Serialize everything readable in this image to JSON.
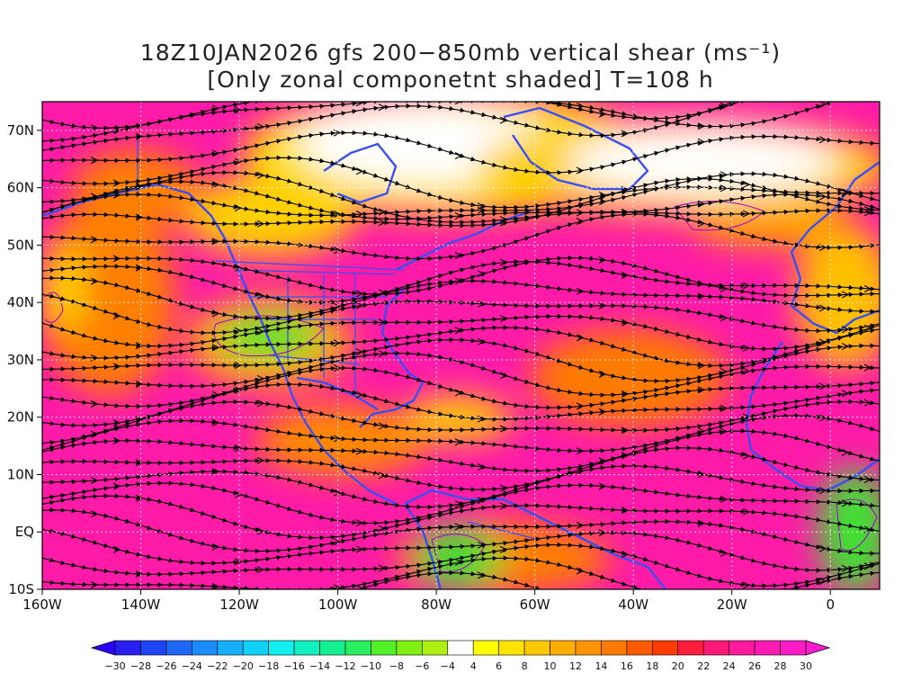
{
  "title": {
    "line1": "18Z10JAN2026 gfs 200−850mb vertical shear (ms⁻¹)",
    "line2": "[Only zonal componetnt shaded] T=108 h"
  },
  "map": {
    "lon_range": [
      -160,
      10
    ],
    "lat_range": [
      -10,
      75
    ],
    "x_ticks": [
      {
        "lon": -160,
        "label": "160W"
      },
      {
        "lon": -140,
        "label": "140W"
      },
      {
        "lon": -120,
        "label": "120W"
      },
      {
        "lon": -100,
        "label": "100W"
      },
      {
        "lon": -80,
        "label": "80W"
      },
      {
        "lon": -60,
        "label": "60W"
      },
      {
        "lon": -40,
        "label": "40W"
      },
      {
        "lon": -20,
        "label": "20W"
      },
      {
        "lon": 0,
        "label": "0"
      }
    ],
    "y_ticks": [
      {
        "lat": 70,
        "label": "70N"
      },
      {
        "lat": 60,
        "label": "60N"
      },
      {
        "lat": 50,
        "label": "50N"
      },
      {
        "lat": 40,
        "label": "40N"
      },
      {
        "lat": 30,
        "label": "30N"
      },
      {
        "lat": 20,
        "label": "20N"
      },
      {
        "lat": 10,
        "label": "10N"
      },
      {
        "lat": 0,
        "label": "EQ"
      },
      {
        "lat": -10,
        "label": "10S"
      }
    ],
    "coast_color": "#3a4ff0",
    "streamline_color": "#000000",
    "contour_color": "#a000c8"
  },
  "colorbar": {
    "labels": [
      "−30",
      "−28",
      "−26",
      "−24",
      "−22",
      "−20",
      "−18",
      "−16",
      "−14",
      "−12",
      "−10",
      "−8",
      "−6",
      "−4",
      "4",
      "6",
      "8",
      "10",
      "12",
      "14",
      "16",
      "18",
      "20",
      "22",
      "24",
      "26",
      "28",
      "30"
    ],
    "colors": [
      "#2a1ef0",
      "#1f44f5",
      "#1e68f8",
      "#1a8cfa",
      "#16b0fa",
      "#12d2fa",
      "#10f0f0",
      "#10f0c0",
      "#14f090",
      "#28f060",
      "#50f028",
      "#80f010",
      "#b0f010",
      "#ffffff",
      "#ffff00",
      "#ffe400",
      "#ffc800",
      "#ffae00",
      "#ff9400",
      "#ff7a00",
      "#ff5a00",
      "#ff3c00",
      "#ff1e3c",
      "#ff1a78",
      "#ff1a9c",
      "#ff1ab4",
      "#ff1ac8"
    ]
  }
}
